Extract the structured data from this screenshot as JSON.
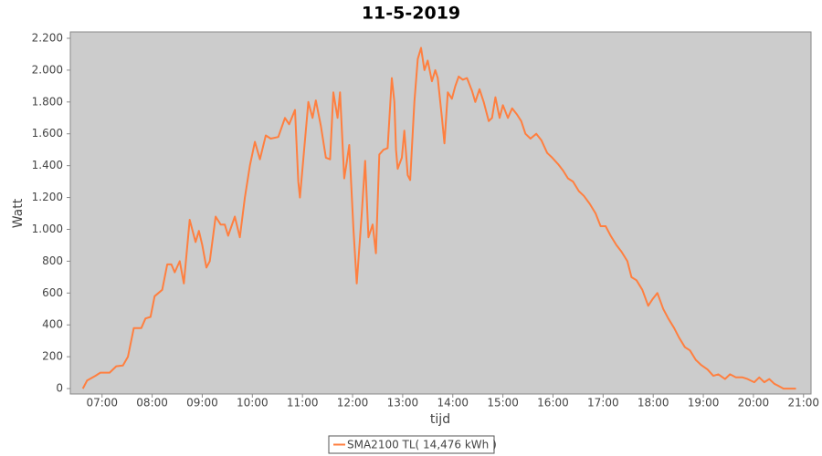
{
  "chart_data": {
    "type": "line",
    "title": "11-5-2019",
    "x_label": "tijd",
    "y_label": "Watt",
    "x": [
      397,
      402,
      412,
      418,
      429,
      437,
      445,
      451,
      458,
      467,
      472,
      478,
      483,
      492,
      498,
      503,
      507,
      513,
      518,
      525,
      532,
      536,
      540,
      545,
      549,
      556,
      562,
      567,
      571,
      579,
      585,
      591,
      597,
      603,
      609,
      616,
      622,
      631,
      639,
      644,
      651,
      655,
      657,
      662,
      667,
      672,
      676,
      682,
      688,
      693,
      697,
      702,
      705,
      710,
      713,
      716,
      721,
      725,
      731,
      735,
      739,
      744,
      748,
      752,
      757,
      762,
      767,
      770,
      772,
      774,
      779,
      782,
      786,
      789,
      794,
      798,
      802,
      806,
      810,
      815,
      819,
      822,
      827,
      830,
      834,
      839,
      843,
      847,
      852,
      857,
      863,
      867,
      872,
      877,
      883,
      887,
      891,
      896,
      900,
      906,
      911,
      917,
      922,
      927,
      933,
      940,
      946,
      953,
      959,
      966,
      972,
      978,
      984,
      991,
      997,
      1004,
      1011,
      1017,
      1023,
      1029,
      1036,
      1042,
      1049,
      1054,
      1060,
      1067,
      1074,
      1079,
      1085,
      1092,
      1098,
      1105,
      1111,
      1118,
      1124,
      1131,
      1137,
      1145,
      1152,
      1158,
      1166,
      1172,
      1179,
      1187,
      1193,
      1201,
      1207,
      1213,
      1219,
      1225,
      1229,
      1236,
      1251
    ],
    "series": [
      {
        "name": "SMA2100 TL( 14,476 kWh )",
        "color": "#ff7f3f",
        "values": [
          0,
          50,
          80,
          100,
          100,
          140,
          145,
          200,
          380,
          380,
          440,
          450,
          580,
          620,
          780,
          780,
          730,
          800,
          660,
          1060,
          920,
          990,
          900,
          760,
          800,
          1080,
          1030,
          1030,
          960,
          1080,
          950,
          1200,
          1400,
          1550,
          1440,
          1590,
          1570,
          1580,
          1700,
          1660,
          1750,
          1300,
          1200,
          1500,
          1800,
          1700,
          1810,
          1650,
          1450,
          1440,
          1860,
          1700,
          1860,
          1320,
          1420,
          1530,
          1000,
          660,
          1100,
          1430,
          950,
          1030,
          850,
          1470,
          1500,
          1510,
          1950,
          1800,
          1500,
          1380,
          1450,
          1620,
          1340,
          1310,
          1800,
          2070,
          2140,
          2000,
          2060,
          1930,
          2000,
          1950,
          1700,
          1540,
          1860,
          1820,
          1900,
          1960,
          1940,
          1950,
          1870,
          1800,
          1880,
          1800,
          1680,
          1700,
          1830,
          1700,
          1780,
          1700,
          1760,
          1720,
          1680,
          1600,
          1570,
          1600,
          1560,
          1480,
          1450,
          1410,
          1370,
          1320,
          1300,
          1240,
          1210,
          1160,
          1100,
          1020,
          1020,
          960,
          900,
          860,
          800,
          700,
          680,
          620,
          520,
          560,
          600,
          500,
          440,
          380,
          320,
          260,
          240,
          180,
          150,
          120,
          80,
          90,
          60,
          90,
          70,
          70,
          60,
          40,
          70,
          40,
          60,
          30,
          20,
          0,
          0
        ]
      }
    ],
    "xlim": [
      382,
      1269
    ],
    "xticks": [
      {
        "value": 420,
        "label": "07:00"
      },
      {
        "value": 480,
        "label": "08:00"
      },
      {
        "value": 540,
        "label": "09:00"
      },
      {
        "value": 600,
        "label": "10:00"
      },
      {
        "value": 660,
        "label": "11:00"
      },
      {
        "value": 720,
        "label": "12:00"
      },
      {
        "value": 780,
        "label": "13:00"
      },
      {
        "value": 840,
        "label": "14:00"
      },
      {
        "value": 900,
        "label": "15:00"
      },
      {
        "value": 960,
        "label": "16:00"
      },
      {
        "value": 1020,
        "label": "17:00"
      },
      {
        "value": 1080,
        "label": "18:00"
      },
      {
        "value": 1140,
        "label": "19:00"
      },
      {
        "value": 1200,
        "label": "20:00"
      },
      {
        "value": 1260,
        "label": "21:00"
      }
    ],
    "ylim": [
      -34,
      2240
    ],
    "yticks": [
      0,
      200,
      400,
      600,
      800,
      {
        "value": 1000,
        "label": "1.000"
      },
      {
        "value": 1200,
        "label": "1.200"
      },
      {
        "value": 1400,
        "label": "1.400"
      },
      {
        "value": 1600,
        "label": "1.600"
      },
      {
        "value": 1800,
        "label": "1.800"
      },
      {
        "value": 2000,
        "label": "2.000"
      },
      {
        "value": 2200,
        "label": "2.200"
      }
    ],
    "plot_background": "#cccccc",
    "grid": false
  }
}
